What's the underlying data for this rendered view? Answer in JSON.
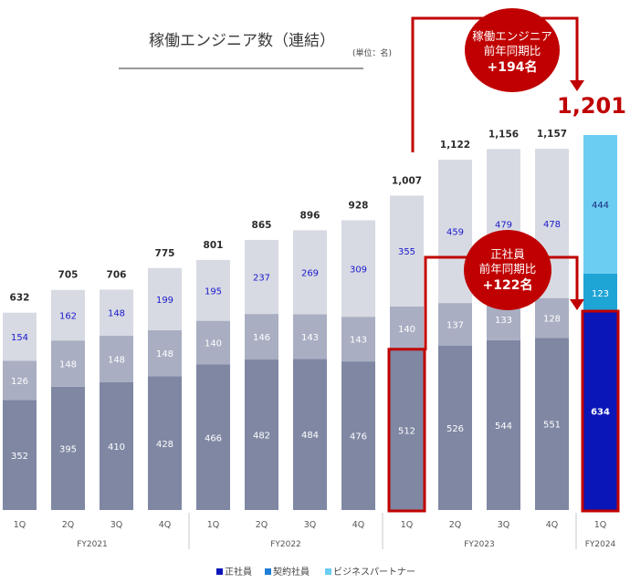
{
  "colors": {
    "employee": "#7f87a3",
    "contract": "#a9aec2",
    "partner": "#d8dae3",
    "employee_hl": "#0a16b7",
    "contract_hl": "#1fa4d6",
    "partner_hl": "#6ccdf3",
    "accent": "#c00000",
    "legend_employee": "#0a16b7",
    "legend_contract": "#1f7fd6",
    "legend_partner": "#6ccdf3",
    "partner_label": "#1a1acc"
  },
  "callouts": {
    "top_line1": "稼働エンジニア",
    "top_line2": "前年同期比",
    "top_line3": "+194名",
    "mid_line1": "正社員",
    "mid_line2": "前年同期比",
    "mid_line3": "+122名"
  },
  "highlight_total": "1,201",
  "chart_data": {
    "type": "bar",
    "stacked": true,
    "title": "稼働エンジニア数（連結）",
    "unit": "(単位：名)",
    "categories": [
      "1Q",
      "2Q",
      "3Q",
      "4Q",
      "1Q",
      "2Q",
      "3Q",
      "4Q",
      "1Q",
      "2Q",
      "3Q",
      "4Q",
      "1Q"
    ],
    "fiscal_years": [
      {
        "label": "FY2021",
        "count": 4
      },
      {
        "label": "FY2022",
        "count": 4
      },
      {
        "label": "FY2023",
        "count": 4
      },
      {
        "label": "FY2024",
        "count": 1
      }
    ],
    "series": [
      {
        "name": "正社員",
        "values": [
          352,
          395,
          410,
          428,
          466,
          482,
          484,
          476,
          512,
          526,
          544,
          551,
          634
        ]
      },
      {
        "name": "契約社員",
        "values": [
          126,
          148,
          148,
          148,
          140,
          146,
          143,
          143,
          140,
          137,
          133,
          128,
          123
        ]
      },
      {
        "name": "ビジネスパートナー",
        "values": [
          154,
          162,
          148,
          199,
          195,
          237,
          269,
          309,
          355,
          459,
          479,
          478,
          444
        ]
      }
    ],
    "totals": [
      "632",
      "705",
      "706",
      "775",
      "801",
      "865",
      "896",
      "928",
      "1,007",
      "1,122",
      "1,156",
      "1,157",
      "1,201"
    ],
    "ylim": [
      0,
      1201
    ],
    "legend": [
      "正社員",
      "契約社員",
      "ビジネスパートナー"
    ],
    "legend_position": "bottom-center"
  }
}
